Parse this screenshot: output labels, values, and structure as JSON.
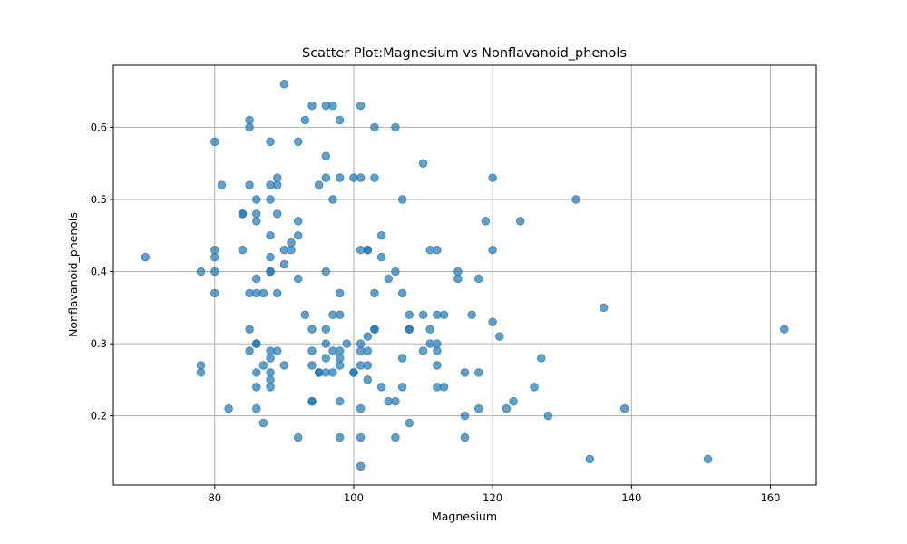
{
  "chart_data": {
    "type": "scatter",
    "title": "Scatter Plot:Magnesium vs Nonflavanoid_phenols",
    "xlabel": "Magnesium",
    "ylabel": "Nonflavanoid_phenols",
    "xlim": [
      65.4,
      166.6
    ],
    "ylim": [
      0.104,
      0.686
    ],
    "xticks": [
      80,
      100,
      120,
      140,
      160
    ],
    "yticks": [
      0.2,
      0.3,
      0.4,
      0.5,
      0.6
    ],
    "xtick_labels": [
      "80",
      "100",
      "120",
      "140",
      "160"
    ],
    "ytick_labels": [
      "0.2",
      "0.3",
      "0.4",
      "0.5",
      "0.6"
    ],
    "grid": true,
    "marker_color": "#1f77b4",
    "marker_alpha": 0.7,
    "points": [
      [
        70,
        0.42
      ],
      [
        78,
        0.4
      ],
      [
        78,
        0.27
      ],
      [
        78,
        0.26
      ],
      [
        80,
        0.58
      ],
      [
        80,
        0.43
      ],
      [
        80,
        0.42
      ],
      [
        80,
        0.4
      ],
      [
        80,
        0.37
      ],
      [
        81,
        0.52
      ],
      [
        82,
        0.21
      ],
      [
        84,
        0.48
      ],
      [
        84,
        0.48
      ],
      [
        84,
        0.43
      ],
      [
        85,
        0.61
      ],
      [
        85,
        0.6
      ],
      [
        85,
        0.52
      ],
      [
        85,
        0.37
      ],
      [
        85,
        0.32
      ],
      [
        85,
        0.29
      ],
      [
        86,
        0.5
      ],
      [
        86,
        0.48
      ],
      [
        86,
        0.47
      ],
      [
        86,
        0.39
      ],
      [
        86,
        0.37
      ],
      [
        86,
        0.3
      ],
      [
        86,
        0.3
      ],
      [
        86,
        0.26
      ],
      [
        86,
        0.24
      ],
      [
        86,
        0.21
      ],
      [
        87,
        0.37
      ],
      [
        87,
        0.27
      ],
      [
        87,
        0.19
      ],
      [
        88,
        0.58
      ],
      [
        88,
        0.52
      ],
      [
        88,
        0.5
      ],
      [
        88,
        0.45
      ],
      [
        88,
        0.42
      ],
      [
        88,
        0.4
      ],
      [
        88,
        0.4
      ],
      [
        88,
        0.29
      ],
      [
        88,
        0.28
      ],
      [
        88,
        0.26
      ],
      [
        88,
        0.25
      ],
      [
        88,
        0.24
      ],
      [
        89,
        0.53
      ],
      [
        89,
        0.52
      ],
      [
        89,
        0.48
      ],
      [
        89,
        0.37
      ],
      [
        89,
        0.29
      ],
      [
        90,
        0.66
      ],
      [
        90,
        0.43
      ],
      [
        90,
        0.41
      ],
      [
        90,
        0.27
      ],
      [
        91,
        0.44
      ],
      [
        91,
        0.43
      ],
      [
        92,
        0.58
      ],
      [
        92,
        0.47
      ],
      [
        92,
        0.45
      ],
      [
        92,
        0.39
      ],
      [
        92,
        0.17
      ],
      [
        93,
        0.61
      ],
      [
        93,
        0.34
      ],
      [
        94,
        0.63
      ],
      [
        94,
        0.32
      ],
      [
        94,
        0.29
      ],
      [
        94,
        0.27
      ],
      [
        94,
        0.22
      ],
      [
        94,
        0.22
      ],
      [
        95,
        0.52
      ],
      [
        95,
        0.26
      ],
      [
        95,
        0.26
      ],
      [
        96,
        0.63
      ],
      [
        96,
        0.56
      ],
      [
        96,
        0.53
      ],
      [
        96,
        0.4
      ],
      [
        96,
        0.32
      ],
      [
        96,
        0.3
      ],
      [
        96,
        0.28
      ],
      [
        96,
        0.26
      ],
      [
        97,
        0.63
      ],
      [
        97,
        0.5
      ],
      [
        97,
        0.34
      ],
      [
        97,
        0.29
      ],
      [
        97,
        0.26
      ],
      [
        98,
        0.61
      ],
      [
        98,
        0.53
      ],
      [
        98,
        0.37
      ],
      [
        98,
        0.34
      ],
      [
        98,
        0.29
      ],
      [
        98,
        0.28
      ],
      [
        98,
        0.27
      ],
      [
        98,
        0.22
      ],
      [
        98,
        0.17
      ],
      [
        99,
        0.3
      ],
      [
        100,
        0.53
      ],
      [
        100,
        0.26
      ],
      [
        100,
        0.26
      ],
      [
        101,
        0.63
      ],
      [
        101,
        0.53
      ],
      [
        101,
        0.43
      ],
      [
        101,
        0.3
      ],
      [
        101,
        0.29
      ],
      [
        101,
        0.27
      ],
      [
        101,
        0.21
      ],
      [
        101,
        0.17
      ],
      [
        101,
        0.13
      ],
      [
        102,
        0.43
      ],
      [
        102,
        0.43
      ],
      [
        102,
        0.31
      ],
      [
        102,
        0.29
      ],
      [
        102,
        0.27
      ],
      [
        102,
        0.25
      ],
      [
        103,
        0.6
      ],
      [
        103,
        0.53
      ],
      [
        103,
        0.37
      ],
      [
        103,
        0.32
      ],
      [
        103,
        0.32
      ],
      [
        104,
        0.45
      ],
      [
        104,
        0.42
      ],
      [
        104,
        0.24
      ],
      [
        105,
        0.39
      ],
      [
        105,
        0.22
      ],
      [
        106,
        0.6
      ],
      [
        106,
        0.4
      ],
      [
        106,
        0.22
      ],
      [
        106,
        0.17
      ],
      [
        107,
        0.5
      ],
      [
        107,
        0.37
      ],
      [
        107,
        0.28
      ],
      [
        107,
        0.24
      ],
      [
        108,
        0.34
      ],
      [
        108,
        0.32
      ],
      [
        108,
        0.32
      ],
      [
        108,
        0.19
      ],
      [
        110,
        0.55
      ],
      [
        110,
        0.34
      ],
      [
        110,
        0.29
      ],
      [
        111,
        0.43
      ],
      [
        111,
        0.32
      ],
      [
        111,
        0.3
      ],
      [
        112,
        0.43
      ],
      [
        112,
        0.34
      ],
      [
        112,
        0.3
      ],
      [
        112,
        0.29
      ],
      [
        112,
        0.27
      ],
      [
        112,
        0.24
      ],
      [
        113,
        0.34
      ],
      [
        113,
        0.24
      ],
      [
        115,
        0.4
      ],
      [
        115,
        0.39
      ],
      [
        116,
        0.26
      ],
      [
        116,
        0.2
      ],
      [
        116,
        0.17
      ],
      [
        117,
        0.34
      ],
      [
        118,
        0.39
      ],
      [
        118,
        0.26
      ],
      [
        118,
        0.21
      ],
      [
        119,
        0.47
      ],
      [
        120,
        0.53
      ],
      [
        120,
        0.43
      ],
      [
        120,
        0.33
      ],
      [
        121,
        0.31
      ],
      [
        122,
        0.21
      ],
      [
        123,
        0.22
      ],
      [
        124,
        0.47
      ],
      [
        126,
        0.24
      ],
      [
        127,
        0.28
      ],
      [
        128,
        0.2
      ],
      [
        132,
        0.5
      ],
      [
        134,
        0.14
      ],
      [
        136,
        0.35
      ],
      [
        139,
        0.21
      ],
      [
        151,
        0.14
      ],
      [
        162,
        0.32
      ]
    ]
  }
}
